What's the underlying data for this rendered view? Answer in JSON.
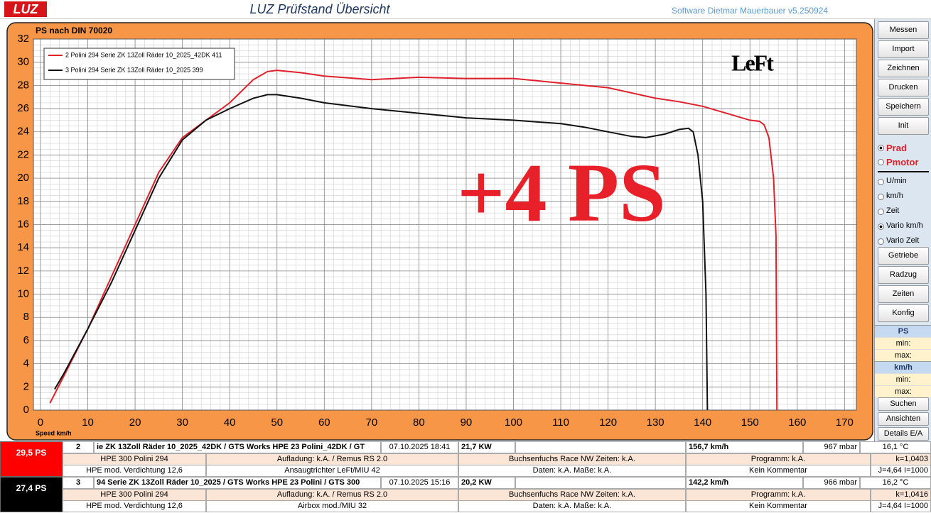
{
  "header": {
    "logo": "LUZ",
    "title": "LUZ Prüfstand  Übersicht",
    "software": "Software Dietmar Mauerbauer v5.250924"
  },
  "chart_data": {
    "type": "line",
    "title": "PS nach DIN 70020",
    "x_label": "Speed km/h",
    "annotation": "+4 PS",
    "brand": "LeFt",
    "xlim": [
      -1.5,
      172.5
    ],
    "ylim": [
      0,
      32
    ],
    "xticks": [
      0,
      10,
      20,
      30,
      40,
      50,
      60,
      70,
      80,
      90,
      100,
      110,
      120,
      130,
      140,
      150,
      160,
      170
    ],
    "yticks": [
      0,
      2,
      4,
      6,
      8,
      10,
      12,
      14,
      16,
      18,
      20,
      22,
      24,
      26,
      28,
      30,
      32
    ],
    "xminor": 2,
    "yminor": 0.5,
    "grid": true,
    "legend": "upper-left",
    "series": [
      {
        "name": "2  Polini 294 Serie ZK 13Zoll Räder 10_2025_42DK 411",
        "color": "#e0202a",
        "x": [
          2,
          5,
          10,
          15,
          20,
          25,
          30,
          35,
          40,
          45,
          48,
          50,
          55,
          60,
          70,
          80,
          90,
          100,
          110,
          120,
          130,
          135,
          140,
          145,
          150,
          152,
          153,
          154,
          155,
          155.5,
          155.7
        ],
        "y": [
          0.6,
          3,
          7,
          11.5,
          16,
          20.5,
          23.5,
          25,
          26.5,
          28.5,
          29.2,
          29.3,
          29.1,
          28.8,
          28.5,
          28.7,
          28.6,
          28.6,
          28.2,
          27.8,
          26.9,
          26.6,
          26.2,
          25.6,
          25,
          24.9,
          24.6,
          23.5,
          20,
          15,
          0
        ]
      },
      {
        "name": "3  Polini 294 Serie ZK 13Zoll Räder 10_2025 399",
        "color": "#111111",
        "x": [
          3,
          5,
          10,
          15,
          20,
          25,
          30,
          35,
          40,
          45,
          48,
          50,
          55,
          60,
          70,
          80,
          90,
          100,
          110,
          115,
          120,
          125,
          128,
          132,
          135,
          137,
          138,
          139,
          140,
          140.7,
          141
        ],
        "y": [
          1.8,
          3.2,
          7,
          11,
          15.5,
          20,
          23.3,
          25,
          26,
          26.9,
          27.2,
          27.2,
          26.9,
          26.5,
          26,
          25.6,
          25.2,
          25,
          24.7,
          24.4,
          24,
          23.6,
          23.5,
          23.8,
          24.2,
          24.3,
          24,
          22,
          18,
          10,
          0
        ]
      }
    ]
  },
  "sidebar": {
    "buttons_top": [
      "Messen",
      "Import",
      "Zeichnen",
      "Drucken",
      "Speichern",
      "Init"
    ],
    "power_modes": [
      {
        "label": "Prad",
        "selected": true
      },
      {
        "label": "Pmotor",
        "selected": false
      }
    ],
    "axis_modes": [
      {
        "label": "U/min",
        "selected": false
      },
      {
        "label": "km/h",
        "selected": false
      },
      {
        "label": "Zeit",
        "selected": false
      },
      {
        "label": "Vario km/h",
        "selected": true
      },
      {
        "label": "Vario Zeit",
        "selected": false
      }
    ],
    "buttons_mid": [
      "Getriebe",
      "Radzug",
      "Zeiten",
      "Konfig"
    ],
    "ranges": [
      {
        "title": "PS",
        "rows": [
          "min:",
          "max:"
        ]
      },
      {
        "title": "km/h",
        "rows": [
          "min:",
          "max:"
        ]
      }
    ],
    "buttons_bottom": [
      "Suchen",
      "Ansichten",
      "Details E/A"
    ]
  },
  "records": [
    {
      "summary": "29,5 PS",
      "color": "#ff0000",
      "row1": [
        "2",
        "ie ZK 13Zoll Räder 10_2025_42DK / GTS Works HPE 23 Polini_42DK / GT",
        "07.10.2025 18:41",
        "21,7  KW",
        "156,7 km/h",
        "967  mbar",
        "16,1 °C"
      ],
      "row2": [
        "HPE 300 Polini 294",
        "Aufladung: k.A.  / Remus RS 2.0",
        "Buchsenfuchs Race NW  Zeiten: k.A.",
        "Programm: k.A.",
        "k=1,0403"
      ],
      "row3": [
        "HPE mod. Verdichtung 12,6",
        "Ansaugtrichter LeFt/MIU 42",
        "Daten: k.A. Maße: k.A.",
        "Kein Kommentar",
        "J=4,64 I=1000"
      ]
    },
    {
      "summary": "27,4 PS",
      "color": "#000000",
      "row1": [
        "3",
        "94 Serie ZK 13Zoll Räder 10_2025 / GTS Works HPE 23 Polini / GTS 300",
        "07.10.2025 15:16",
        "20,2  KW",
        "142,2 km/h",
        "966  mbar",
        "16,2 °C"
      ],
      "row2": [
        "HPE 300 Polini 294",
        "Aufladung: k.A.  / Remus RS 2.0",
        "Buchsenfuchs Race NW  Zeiten: k.A.",
        "Programm: k.A.",
        "k=1,0416"
      ],
      "row3": [
        "HPE mod. Verdichtung 12,6",
        "Airbox mod./MIU 32",
        "Daten: k.A. Maße: k.A.",
        "Kein Kommentar",
        "J=4,64 I=1000"
      ]
    }
  ]
}
